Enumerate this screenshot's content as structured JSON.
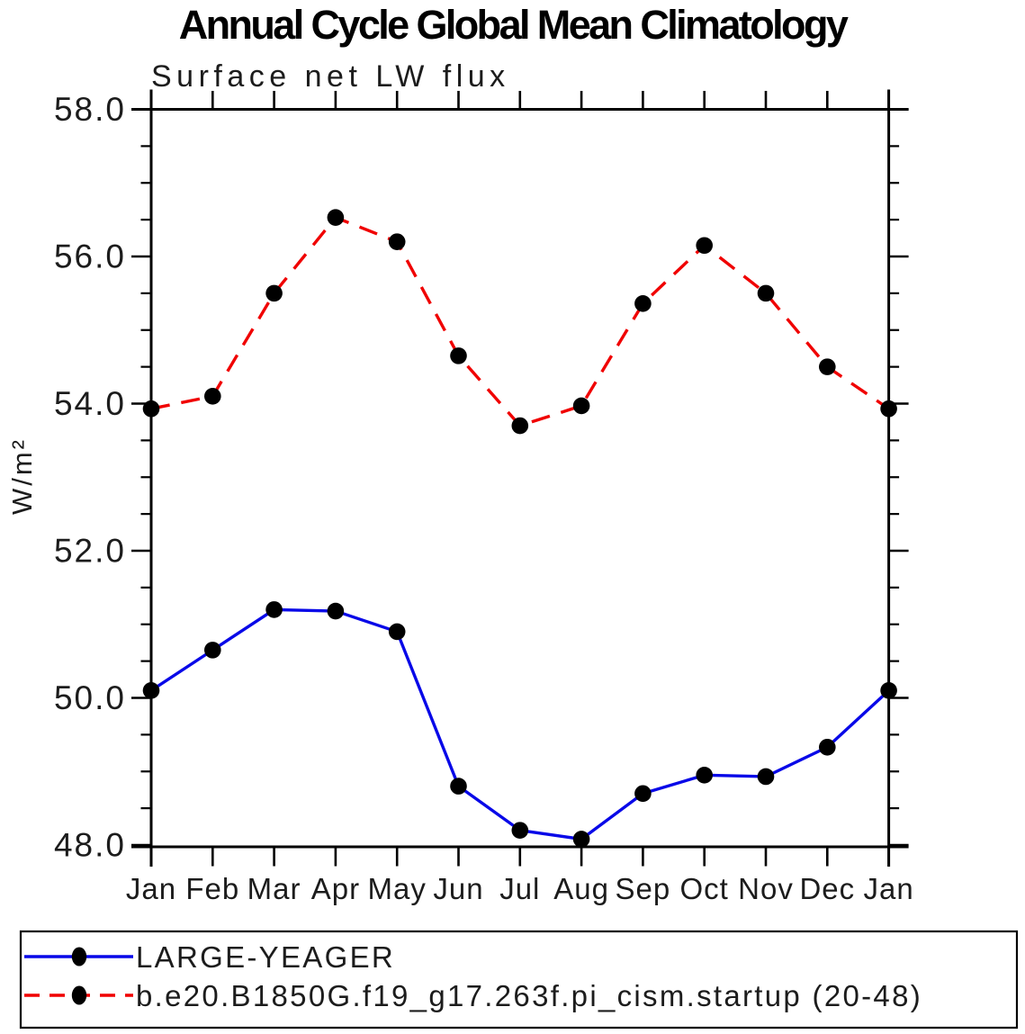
{
  "chart_data": {
    "type": "line",
    "title": "Annual Cycle Global Mean Climatology",
    "subtitle": "Surface net LW flux",
    "xlabel": "",
    "ylabel": "W/m²",
    "categories": [
      "Jan",
      "Feb",
      "Mar",
      "Apr",
      "May",
      "Jun",
      "Jul",
      "Aug",
      "Sep",
      "Oct",
      "Nov",
      "Dec",
      "Jan"
    ],
    "ylim": [
      48.0,
      58.0
    ],
    "ytick_values": [
      58.0,
      56.0,
      54.0,
      52.0,
      50.0,
      48.0
    ],
    "ytick_labels": [
      "58.0",
      "56.0",
      "54.0",
      "52.0",
      "50.0",
      "48.0"
    ],
    "minor_tick_step": 0.5,
    "grid": "off",
    "legend_position": "bottom-box",
    "series": [
      {
        "name": "LARGE-YEAGER",
        "color": "#0808e8",
        "line_style": "solid",
        "marker": "filled-black-circle",
        "values": [
          50.1,
          50.65,
          51.2,
          51.18,
          50.9,
          48.8,
          48.2,
          48.08,
          48.7,
          48.95,
          48.93,
          49.33,
          50.1
        ]
      },
      {
        "name": "b.e20.B1850G.f19_g17.263f.pi_cism.startup (20-48)",
        "color": "#f00000",
        "line_style": "dashed",
        "marker": "filled-black-circle",
        "values": [
          53.93,
          54.1,
          55.5,
          56.53,
          56.2,
          54.65,
          53.7,
          53.97,
          55.36,
          56.15,
          55.5,
          54.5,
          53.93
        ]
      }
    ]
  }
}
